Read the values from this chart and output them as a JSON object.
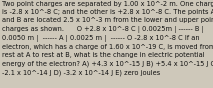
{
  "lines": [
    "Two point charges are separated by 1.00 x 10^-2 m. One charge",
    "is -2.8 x 10^-8 C; and the other is +2.8 x 10^-8 C. The points A",
    "and B are located 2.5 x 10^-3 m from the lower and upper point",
    "charges as shown.      O +2.8 x 10^-8 C | 0.0025m | ------ B |",
    "0.0050 m |  ------ A | 0.0025 m |  ------ O -2.8 x 10^-8 C If an",
    "electron, which has a charge of 1.60 x 10^-19 C, is moved from",
    "rest at A to rest at B, what is the change in electric potential",
    "energy of the electron? A) +4.3 x 10^-15 J B) +5.4 x 10^-15 J C)",
    "-2.1 x 10^-14 J D) -3.2 x 10^-14 J E) zero joules"
  ],
  "fontsize": 4.8,
  "bg_color": "#cec8ba",
  "text_color": "#111111",
  "fig_width": 2.13,
  "fig_height": 0.88,
  "dpi": 100,
  "linespacing": 1.45
}
